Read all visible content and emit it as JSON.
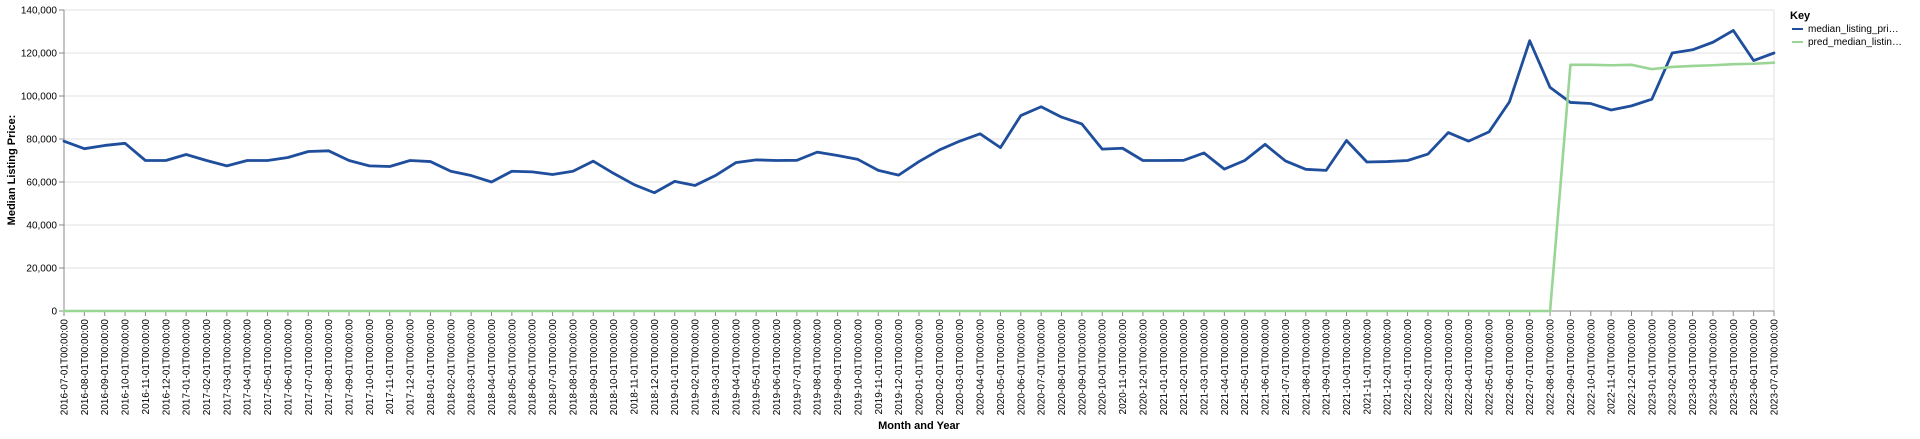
{
  "chart_data": {
    "type": "line",
    "title": "",
    "xlabel": "Month and Year",
    "ylabel": "Median Listing Price:",
    "ylim": [
      0,
      140000
    ],
    "yticks": [
      0,
      20000,
      40000,
      60000,
      80000,
      100000,
      120000,
      140000
    ],
    "ytick_labels": [
      "0",
      "20,000",
      "40,000",
      "60,000",
      "80,000",
      "100,000",
      "120,000",
      "140,000"
    ],
    "grid": true,
    "legend": {
      "title": "Key",
      "position": "top-right",
      "entries": [
        "median_listing_pri…",
        "pred_median_listin…"
      ]
    },
    "x": [
      "2016-07-01T00:00:00",
      "2016-08-01T00:00:00",
      "2016-09-01T00:00:00",
      "2016-10-01T00:00:00",
      "2016-11-01T00:00:00",
      "2016-12-01T00:00:00",
      "2017-01-01T00:00:00",
      "2017-02-01T00:00:00",
      "2017-03-01T00:00:00",
      "2017-04-01T00:00:00",
      "2017-05-01T00:00:00",
      "2017-06-01T00:00:00",
      "2017-07-01T00:00:00",
      "2017-08-01T00:00:00",
      "2017-09-01T00:00:00",
      "2017-10-01T00:00:00",
      "2017-11-01T00:00:00",
      "2017-12-01T00:00:00",
      "2018-01-01T00:00:00",
      "2018-02-01T00:00:00",
      "2018-03-01T00:00:00",
      "2018-04-01T00:00:00",
      "2018-05-01T00:00:00",
      "2018-06-01T00:00:00",
      "2018-07-01T00:00:00",
      "2018-08-01T00:00:00",
      "2018-09-01T00:00:00",
      "2018-10-01T00:00:00",
      "2018-11-01T00:00:00",
      "2018-12-01T00:00:00",
      "2019-01-01T00:00:00",
      "2019-02-01T00:00:00",
      "2019-03-01T00:00:00",
      "2019-04-01T00:00:00",
      "2019-05-01T00:00:00",
      "2019-06-01T00:00:00",
      "2019-07-01T00:00:00",
      "2019-08-01T00:00:00",
      "2019-09-01T00:00:00",
      "2019-10-01T00:00:00",
      "2019-11-01T00:00:00",
      "2019-12-01T00:00:00",
      "2020-01-01T00:00:00",
      "2020-02-01T00:00:00",
      "2020-03-01T00:00:00",
      "2020-04-01T00:00:00",
      "2020-05-01T00:00:00",
      "2020-06-01T00:00:00",
      "2020-07-01T00:00:00",
      "2020-08-01T00:00:00",
      "2020-09-01T00:00:00",
      "2020-10-01T00:00:00",
      "2020-11-01T00:00:00",
      "2020-12-01T00:00:00",
      "2021-01-01T00:00:00",
      "2021-02-01T00:00:00",
      "2021-03-01T00:00:00",
      "2021-04-01T00:00:00",
      "2021-05-01T00:00:00",
      "2021-06-01T00:00:00",
      "2021-07-01T00:00:00",
      "2021-08-01T00:00:00",
      "2021-09-01T00:00:00",
      "2021-10-01T00:00:00",
      "2021-11-01T00:00:00",
      "2021-12-01T00:00:00",
      "2022-01-01T00:00:00",
      "2022-02-01T00:00:00",
      "2022-03-01T00:00:00",
      "2022-04-01T00:00:00",
      "2022-05-01T00:00:00",
      "2022-06-01T00:00:00",
      "2022-07-01T00:00:00",
      "2022-08-01T00:00:00",
      "2022-09-01T00:00:00",
      "2022-10-01T00:00:00",
      "2022-11-01T00:00:00",
      "2022-12-01T00:00:00",
      "2023-01-01T00:00:00",
      "2023-02-01T00:00:00",
      "2023-03-01T00:00:00",
      "2023-04-01T00:00:00",
      "2023-05-01T00:00:00",
      "2023-06-01T00:00:00",
      "2023-07-01T00:00:00"
    ],
    "series": [
      {
        "name": "median_listing_pri…",
        "color": "#1f4e9c",
        "values": [
          79000,
          75500,
          77000,
          78000,
          70000,
          70000,
          72800,
          70000,
          67500,
          70000,
          70000,
          71400,
          74200,
          74500,
          70000,
          67500,
          67200,
          70000,
          69500,
          65000,
          63000,
          60000,
          65000,
          64700,
          63500,
          65000,
          69700,
          64000,
          58800,
          55000,
          60300,
          58400,
          63000,
          69000,
          70300,
          70000,
          70100,
          73900,
          72300,
          70500,
          65400,
          63200,
          69500,
          74900,
          79000,
          82400,
          76000,
          90900,
          95000,
          90200,
          87000,
          75300,
          75700,
          70000,
          70000,
          70100,
          73500,
          66000,
          70000,
          77500,
          69800,
          65900,
          65400,
          79300,
          69300,
          69500,
          70000,
          73000,
          83000,
          79000,
          83300,
          97200,
          125700,
          104000,
          97000,
          96500,
          93500,
          95400,
          98500,
          120000,
          121500,
          125000,
          130500,
          116500,
          120000
        ]
      },
      {
        "name": "pred_median_listin…",
        "color": "#99d594",
        "values": [
          0,
          0,
          0,
          0,
          0,
          0,
          0,
          0,
          0,
          0,
          0,
          0,
          0,
          0,
          0,
          0,
          0,
          0,
          0,
          0,
          0,
          0,
          0,
          0,
          0,
          0,
          0,
          0,
          0,
          0,
          0,
          0,
          0,
          0,
          0,
          0,
          0,
          0,
          0,
          0,
          0,
          0,
          0,
          0,
          0,
          0,
          0,
          0,
          0,
          0,
          0,
          0,
          0,
          0,
          0,
          0,
          0,
          0,
          0,
          0,
          0,
          0,
          0,
          0,
          0,
          0,
          0,
          0,
          0,
          0,
          0,
          0,
          0,
          0,
          114500,
          114500,
          114300,
          114500,
          112500,
          113500,
          114000,
          114300,
          114800,
          115000,
          115500
        ]
      }
    ]
  }
}
